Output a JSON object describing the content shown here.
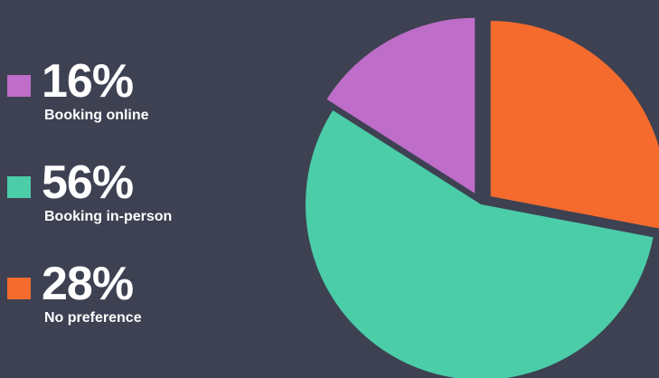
{
  "chart_data": {
    "type": "pie",
    "title": "",
    "series": [
      {
        "name": "",
        "values": [
          16,
          56,
          28
        ]
      }
    ],
    "categories": [
      "Booking online",
      "Booking in-person",
      "No preference"
    ],
    "slices": [
      {
        "value": 16,
        "value_label": "16%",
        "label": "Booking online",
        "color": "#be6dc8",
        "exploded": true
      },
      {
        "value": 56,
        "value_label": "56%",
        "label": "Booking in-person",
        "color": "#4bcda8",
        "exploded": false
      },
      {
        "value": 28,
        "value_label": "28%",
        "label": "No preference",
        "color": "#f46b2d",
        "exploded": true
      }
    ],
    "legend_placement": "left",
    "background": "#3d4152"
  }
}
